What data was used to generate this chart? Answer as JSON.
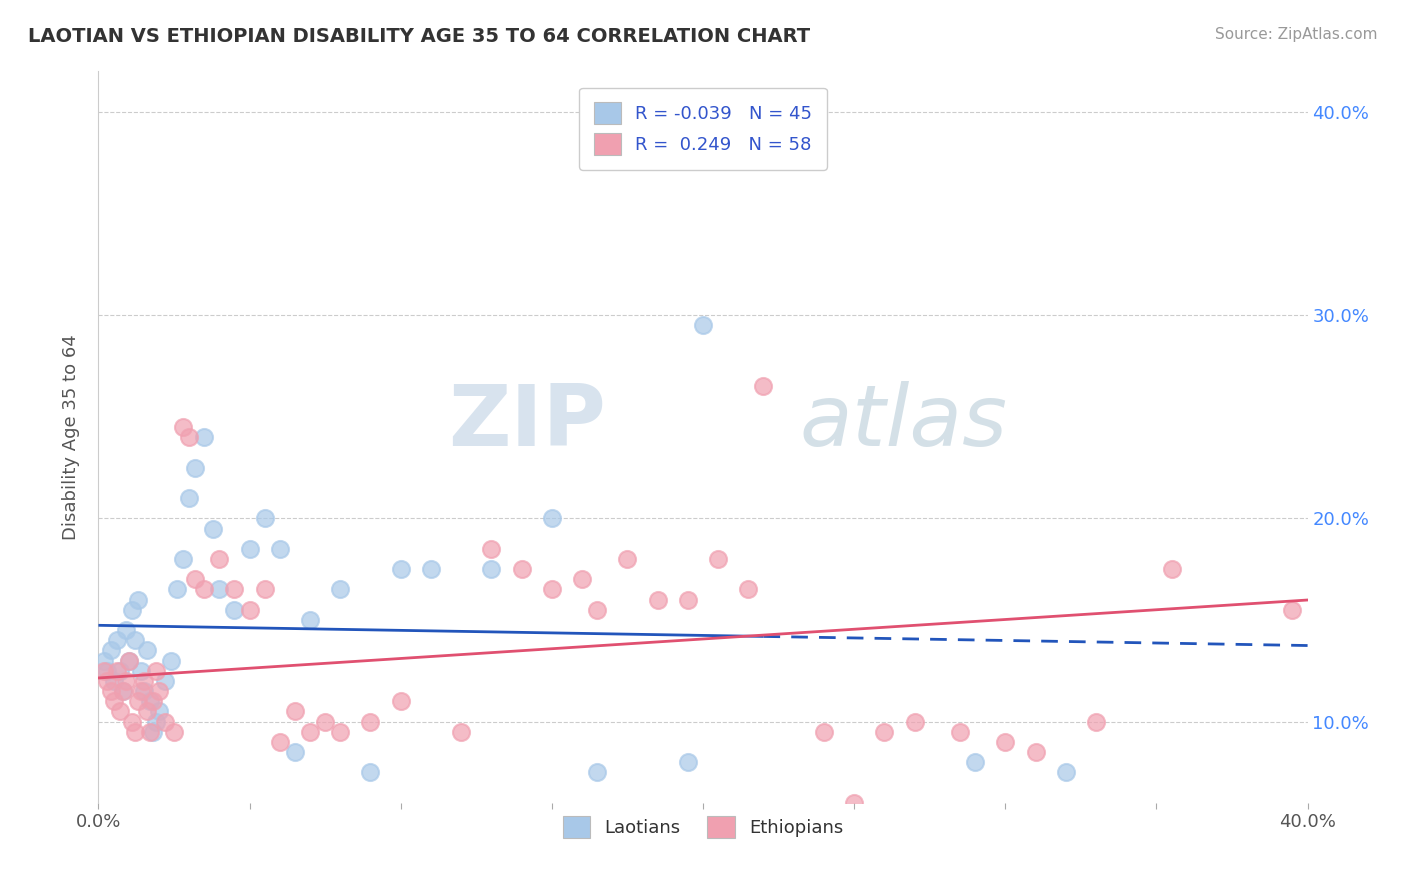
{
  "title": "LAOTIAN VS ETHIOPIAN DISABILITY AGE 35 TO 64 CORRELATION CHART",
  "source": "Source: ZipAtlas.com",
  "ylabel": "Disability Age 35 to 64",
  "xlim": [
    0.0,
    0.4
  ],
  "ylim": [
    0.06,
    0.42
  ],
  "ytick_vals": [
    0.1,
    0.2,
    0.3,
    0.4
  ],
  "xtick_vals": [
    0.0,
    0.05,
    0.1,
    0.15,
    0.2,
    0.25,
    0.3,
    0.35,
    0.4
  ],
  "laotian_color": "#a8c8e8",
  "ethiopian_color": "#f0a0b0",
  "laotian_line_color": "#2255bb",
  "ethiopian_line_color": "#e05070",
  "laotian_R": -0.039,
  "laotian_N": 45,
  "ethiopian_R": 0.249,
  "ethiopian_N": 58,
  "watermark_zip": "ZIP",
  "watermark_atlas": "atlas",
  "background_color": "#ffffff",
  "grid_color": "#cccccc",
  "legend_text_color": "#3355cc",
  "right_axis_color": "#4488ff",
  "laotian_x": [
    0.002,
    0.003,
    0.004,
    0.005,
    0.006,
    0.007,
    0.008,
    0.009,
    0.01,
    0.011,
    0.012,
    0.013,
    0.014,
    0.015,
    0.016,
    0.017,
    0.018,
    0.019,
    0.02,
    0.022,
    0.024,
    0.026,
    0.028,
    0.03,
    0.032,
    0.035,
    0.038,
    0.04,
    0.045,
    0.05,
    0.055,
    0.06,
    0.065,
    0.07,
    0.08,
    0.09,
    0.1,
    0.11,
    0.13,
    0.15,
    0.165,
    0.195,
    0.2,
    0.29,
    0.32
  ],
  "laotian_y": [
    0.13,
    0.125,
    0.135,
    0.12,
    0.14,
    0.125,
    0.115,
    0.145,
    0.13,
    0.155,
    0.14,
    0.16,
    0.125,
    0.115,
    0.135,
    0.11,
    0.095,
    0.1,
    0.105,
    0.12,
    0.13,
    0.165,
    0.18,
    0.21,
    0.225,
    0.24,
    0.195,
    0.165,
    0.155,
    0.185,
    0.2,
    0.185,
    0.085,
    0.15,
    0.165,
    0.075,
    0.175,
    0.175,
    0.175,
    0.2,
    0.075,
    0.08,
    0.295,
    0.08,
    0.075
  ],
  "ethiopian_x": [
    0.002,
    0.003,
    0.004,
    0.005,
    0.006,
    0.007,
    0.008,
    0.009,
    0.01,
    0.011,
    0.012,
    0.013,
    0.014,
    0.015,
    0.016,
    0.017,
    0.018,
    0.019,
    0.02,
    0.022,
    0.025,
    0.028,
    0.03,
    0.032,
    0.035,
    0.04,
    0.045,
    0.05,
    0.055,
    0.06,
    0.065,
    0.07,
    0.075,
    0.08,
    0.09,
    0.1,
    0.12,
    0.13,
    0.14,
    0.15,
    0.16,
    0.165,
    0.175,
    0.185,
    0.195,
    0.205,
    0.215,
    0.22,
    0.24,
    0.25,
    0.26,
    0.27,
    0.285,
    0.3,
    0.31,
    0.33,
    0.355,
    0.395
  ],
  "ethiopian_y": [
    0.125,
    0.12,
    0.115,
    0.11,
    0.125,
    0.105,
    0.115,
    0.12,
    0.13,
    0.1,
    0.095,
    0.11,
    0.115,
    0.12,
    0.105,
    0.095,
    0.11,
    0.125,
    0.115,
    0.1,
    0.095,
    0.245,
    0.24,
    0.17,
    0.165,
    0.18,
    0.165,
    0.155,
    0.165,
    0.09,
    0.105,
    0.095,
    0.1,
    0.095,
    0.1,
    0.11,
    0.095,
    0.185,
    0.175,
    0.165,
    0.17,
    0.155,
    0.18,
    0.16,
    0.16,
    0.18,
    0.165,
    0.265,
    0.095,
    0.06,
    0.095,
    0.1,
    0.095,
    0.09,
    0.085,
    0.1,
    0.175,
    0.155
  ]
}
